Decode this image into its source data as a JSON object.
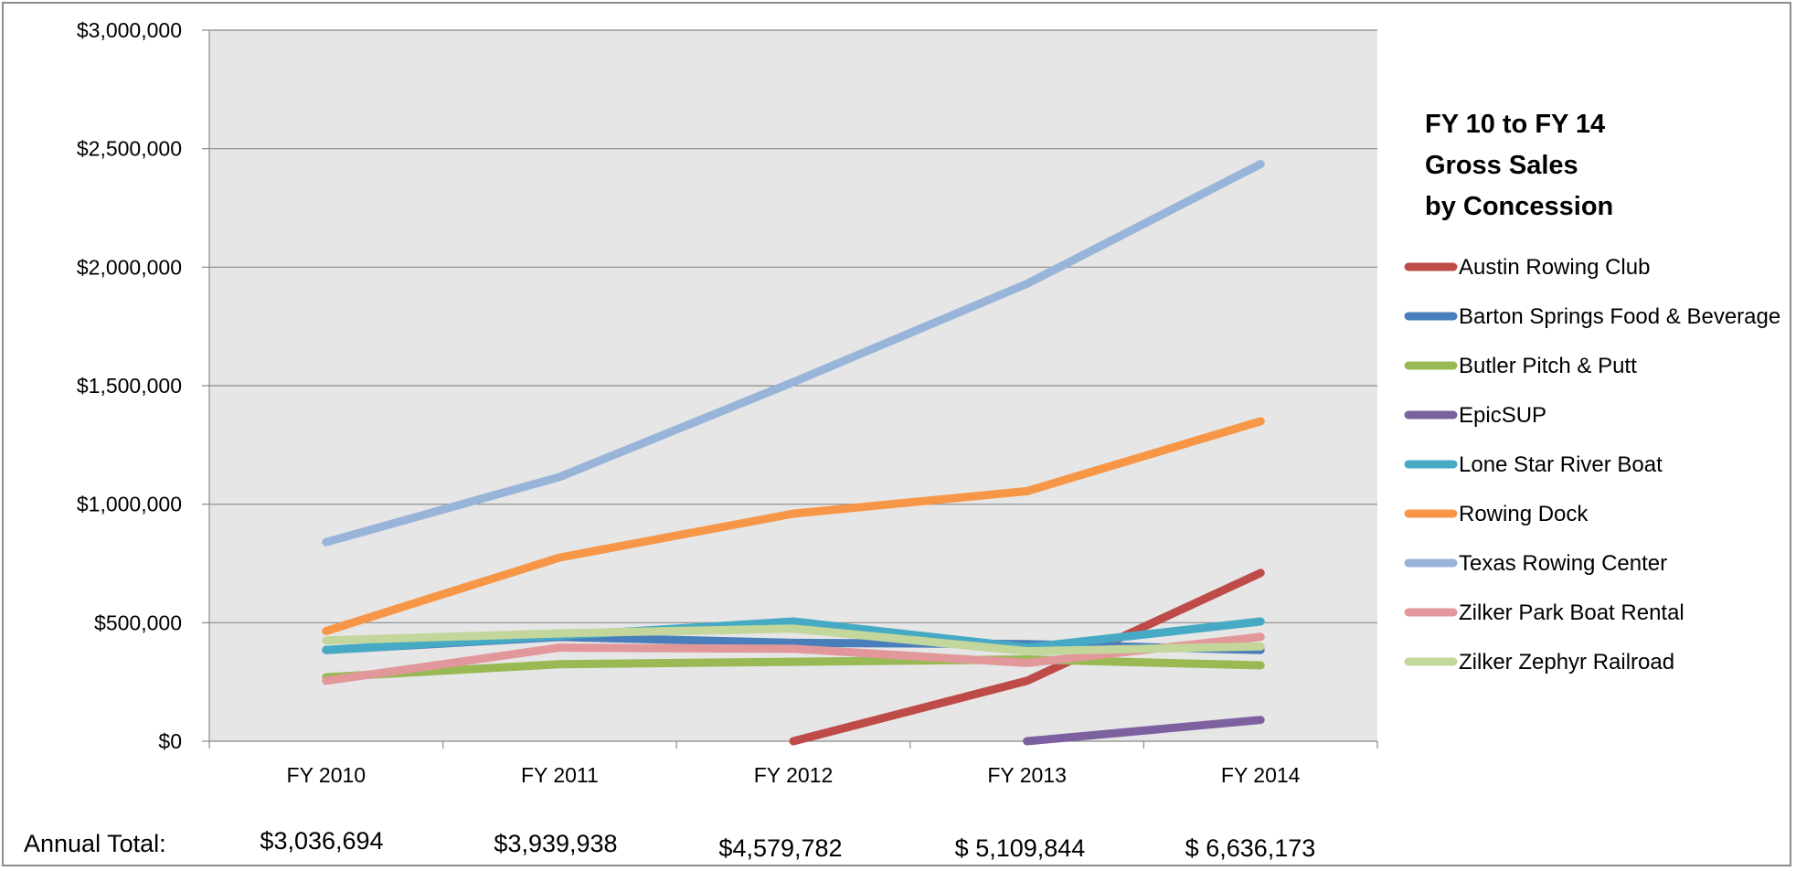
{
  "chart_data": {
    "type": "line",
    "title_lines": [
      "FY 10 to FY 14",
      "Gross Sales",
      "by Concession"
    ],
    "categories": [
      "FY 2010",
      "FY 2011",
      "FY 2012",
      "FY 2013",
      "FY 2014"
    ],
    "ylim": [
      0,
      3000000
    ],
    "y_ticks": [
      0,
      500000,
      1000000,
      1500000,
      2000000,
      2500000,
      3000000
    ],
    "y_tick_labels": [
      "$0",
      "$500,000",
      "$1,000,000",
      "$1,500,000",
      "$2,000,000",
      "$2,500,000",
      "$3,000,000"
    ],
    "grid": true,
    "legend_position": "right",
    "series": [
      {
        "name": "Austin Rowing Club",
        "color": "#be4b48",
        "values": [
          null,
          null,
          0,
          255000,
          710000
        ]
      },
      {
        "name": "Barton Springs Food & Beverage",
        "color": "#4a7ebb",
        "values": [
          385000,
          440000,
          415000,
          410000,
          385000
        ]
      },
      {
        "name": "Butler Pitch & Putt",
        "color": "#98b954",
        "values": [
          270000,
          325000,
          335000,
          345000,
          320000
        ]
      },
      {
        "name": "EpicSUP",
        "color": "#7d60a0",
        "values": [
          null,
          null,
          null,
          0,
          90000
        ]
      },
      {
        "name": "Lone Star River Boat",
        "color": "#46aac5",
        "values": [
          385000,
          445000,
          505000,
          395000,
          505000
        ]
      },
      {
        "name": "Rowing Dock",
        "color": "#f79646",
        "values": [
          465000,
          775000,
          960000,
          1055000,
          1350000
        ]
      },
      {
        "name": "Texas Rowing Center",
        "color": "#98b4d8",
        "values": [
          840000,
          1115000,
          1515000,
          1930000,
          2435000
        ]
      },
      {
        "name": "Zilker Park Boat Rental",
        "color": "#e2989a",
        "values": [
          255000,
          395000,
          390000,
          330000,
          440000
        ]
      },
      {
        "name": "Zilker Zephyr Railroad",
        "color": "#c3d69b",
        "values": [
          425000,
          455000,
          475000,
          380000,
          400000
        ]
      }
    ],
    "annual_totals_label": "Annual Total:",
    "annual_totals": [
      "$3,036,694",
      "$3,939,938",
      "$4,579,782",
      "$ 5,109,844",
      "$ 6,636,173"
    ]
  }
}
